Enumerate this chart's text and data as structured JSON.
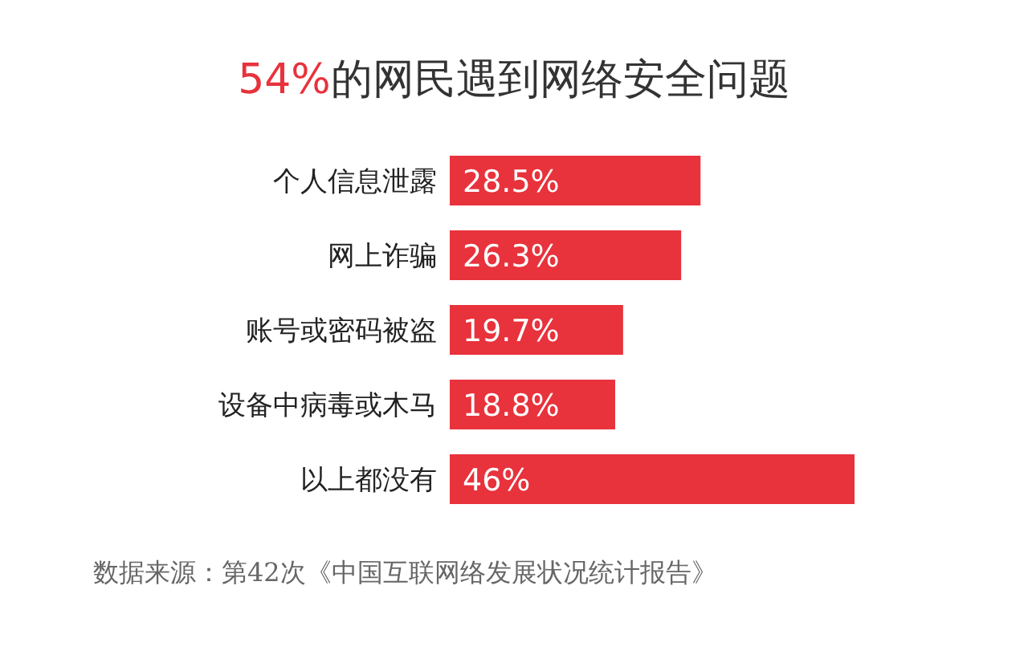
{
  "chart_data": {
    "type": "bar",
    "orientation": "horizontal",
    "title": "54%的网民遇到网络安全问题",
    "categories": [
      "个人信息泄露",
      "网上诈骗",
      "账号或密码被盗",
      "设备中病毒或木马",
      "以上都没有"
    ],
    "values": [
      28.5,
      26.3,
      19.7,
      18.8,
      46
    ],
    "value_labels": [
      "28.5%",
      "26.3%",
      "19.7%",
      "18.8%",
      "46%"
    ],
    "color": "#e8323c",
    "annotations": [
      "数据来源：第42次《中国互联网络发展状况统计报告》"
    ]
  }
}
